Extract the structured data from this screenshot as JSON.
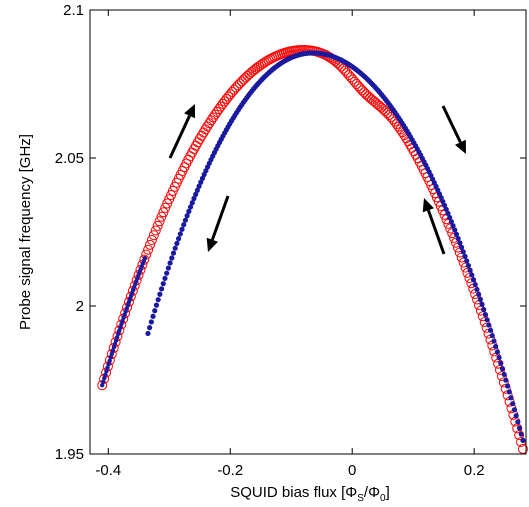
{
  "chart_data": {
    "type": "scatter",
    "title": "",
    "xlabel": "SQUID bias flux [Φ",
    "xlabel_sub1": "S",
    "xlabel_mid": "/Φ",
    "xlabel_sub2": "0",
    "xlabel_end": "]",
    "ylabel": "Probe signal frequency [GHz]",
    "xlim": [
      -0.43,
      0.285
    ],
    "ylim": [
      1.95,
      2.1
    ],
    "x_ticks": [
      -0.4,
      -0.2,
      0,
      0.2
    ],
    "x_tick_labels": [
      "-0.4",
      "-0.2",
      "0",
      "0.2"
    ],
    "y_ticks": [
      1.95,
      2.0,
      2.05,
      2.1
    ],
    "y_tick_labels": [
      "1.95",
      "2",
      "2.05",
      "2.1"
    ],
    "grid": false,
    "series": [
      {
        "marker": "open-circle",
        "color": "#ff0000",
        "x_range": [
          -0.41,
          0.28
        ],
        "peak": {
          "x": -0.08,
          "y": 2.0865
        },
        "curvature_left": 1.04,
        "curvature_right": 1.04,
        "dip": {
          "x": 0.02,
          "depth": 0.004
        }
      },
      {
        "marker": "filled-dot",
        "color": "#1a1aa0",
        "x_range": [
          -0.335,
          0.28
        ],
        "peak": {
          "x": -0.065,
          "y": 2.0855
        },
        "curvature_left": 1.3,
        "curvature_right": 1.1,
        "left_trace_x": [
          -0.41,
          -0.34
        ]
      }
    ],
    "annotations": [
      {
        "type": "arrow",
        "direction": "up"
      },
      {
        "type": "arrow",
        "direction": "down"
      },
      {
        "type": "arrow",
        "direction": "down"
      },
      {
        "type": "arrow",
        "direction": "up"
      }
    ]
  }
}
